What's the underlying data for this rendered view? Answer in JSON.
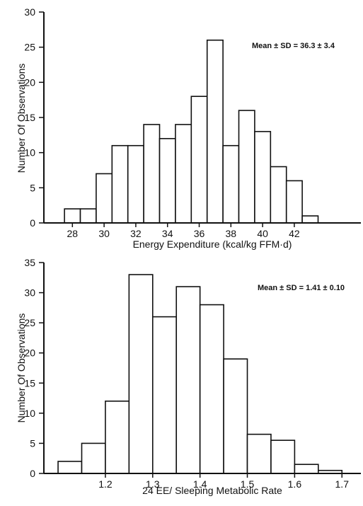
{
  "chart_data": [
    {
      "type": "bar",
      "xlabel": "Energy Expenditure (kcal/kg FFM·d)",
      "ylabel": "Number Of Observations",
      "annotation": "Mean ± SD = 36.3 ± 3.4",
      "ylim": [
        0,
        30
      ],
      "yticks": [
        0,
        5,
        10,
        15,
        20,
        25,
        30
      ],
      "xlim": [
        26.2,
        46.2
      ],
      "xticks": [
        28,
        30,
        32,
        34,
        36,
        38,
        40,
        42
      ],
      "bin_width": 1,
      "bins": [
        {
          "x0": 27.5,
          "value": 2
        },
        {
          "x0": 28.5,
          "value": 2
        },
        {
          "x0": 29.5,
          "value": 7
        },
        {
          "x0": 30.5,
          "value": 11
        },
        {
          "x0": 31.5,
          "value": 11
        },
        {
          "x0": 32.5,
          "value": 14
        },
        {
          "x0": 33.5,
          "value": 12
        },
        {
          "x0": 34.5,
          "value": 14
        },
        {
          "x0": 35.5,
          "value": 18
        },
        {
          "x0": 36.5,
          "value": 26
        },
        {
          "x0": 37.5,
          "value": 11
        },
        {
          "x0": 38.5,
          "value": 16
        },
        {
          "x0": 39.5,
          "value": 13
        },
        {
          "x0": 40.5,
          "value": 8
        },
        {
          "x0": 41.5,
          "value": 6
        },
        {
          "x0": 42.5,
          "value": 1
        }
      ]
    },
    {
      "type": "bar",
      "xlabel": "24 EE/ Sleeping Metabolic Rate",
      "ylabel": "Number Of Observations",
      "annotation": "Mean ± SD = 1.41 ± 0.10",
      "ylim": [
        0,
        35
      ],
      "yticks": [
        0,
        5,
        10,
        15,
        20,
        25,
        30,
        35
      ],
      "xlim": [
        1.07,
        1.74
      ],
      "xticks": [
        1.2,
        1.3,
        1.4,
        1.5,
        1.6,
        1.7
      ],
      "xtick_labels": [
        "1.2",
        "1.3",
        "1.4",
        "1.5",
        "1.6",
        "1.7"
      ],
      "bin_width": 0.05,
      "bins": [
        {
          "x0": 1.1,
          "value": 2
        },
        {
          "x0": 1.15,
          "value": 5
        },
        {
          "x0": 1.2,
          "value": 12
        },
        {
          "x0": 1.25,
          "value": 33
        },
        {
          "x0": 1.3,
          "value": 26
        },
        {
          "x0": 1.35,
          "value": 31
        },
        {
          "x0": 1.4,
          "value": 28
        },
        {
          "x0": 1.45,
          "value": 19
        },
        {
          "x0": 1.5,
          "value": 6.5
        },
        {
          "x0": 1.55,
          "value": 5.5
        },
        {
          "x0": 1.6,
          "value": 1.5
        },
        {
          "x0": 1.65,
          "value": 0.5
        }
      ]
    }
  ]
}
